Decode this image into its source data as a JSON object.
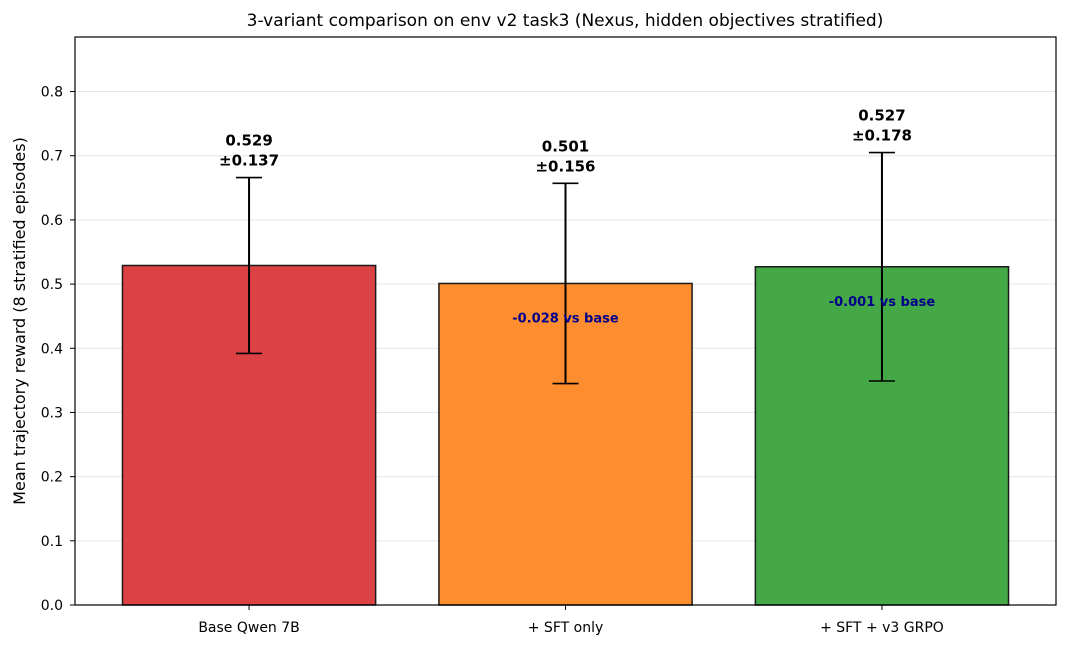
{
  "chart_data": {
    "type": "bar",
    "title": "3-variant comparison on env v2 task3 (Nexus, hidden objectives stratified)",
    "ylabel": "Mean trajectory reward (8 stratified episodes)",
    "xlabel": "",
    "ylim": [
      0,
      0.885
    ],
    "yticks": [
      "0.0",
      "0.1",
      "0.2",
      "0.3",
      "0.4",
      "0.5",
      "0.6",
      "0.7",
      "0.8"
    ],
    "grid": "y",
    "categories": [
      "Base Qwen 7B",
      "+ SFT only",
      "+ SFT + v3 GRPO"
    ],
    "values": [
      0.529,
      0.501,
      0.527
    ],
    "errors": [
      0.137,
      0.156,
      0.178
    ],
    "colors": [
      "#dc4243",
      "#fe8d2f",
      "#45a847"
    ],
    "value_labels": [
      {
        "value": "0.529",
        "error": "±0.137"
      },
      {
        "value": "0.501",
        "error": "±0.156"
      },
      {
        "value": "0.527",
        "error": "±0.178"
      }
    ],
    "delta_labels": [
      "",
      "-0.028 vs base",
      "-0.001 vs base"
    ]
  }
}
